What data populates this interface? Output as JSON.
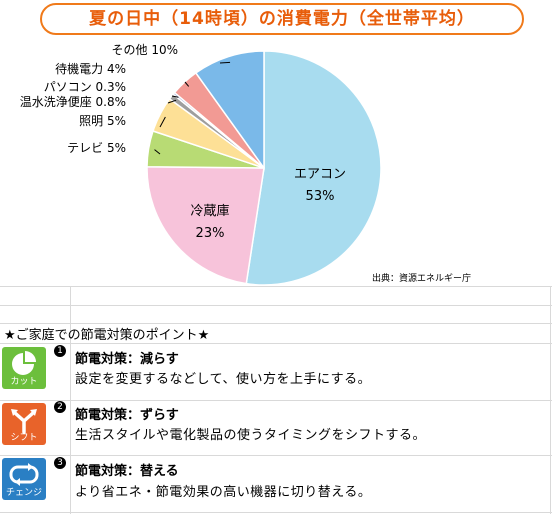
{
  "title": "夏の日中（14時頃）の消費電力（全世帯平均）",
  "source": "出典：資源エネルギー庁",
  "chart_data": {
    "type": "pie",
    "title": "夏の日中（14時頃）の消費電力（全世帯平均）",
    "slices": [
      {
        "label": "エアコン",
        "value": 53,
        "display": "53%",
        "color": "#a8dcef"
      },
      {
        "label": "冷蔵庫",
        "value": 23,
        "display": "23%",
        "color": "#f7c3da"
      },
      {
        "label": "テレビ",
        "value": 5,
        "display": "テレビ 5%",
        "color": "#b8db74"
      },
      {
        "label": "照明",
        "value": 5,
        "display": "照明 5%",
        "color": "#fde096"
      },
      {
        "label": "温水洗浄便座",
        "value": 0.8,
        "display": "温水洗浄便座 0.8%",
        "color": "#9e9e9e"
      },
      {
        "label": "パソコン",
        "value": 0.3,
        "display": "パソコン 0.3%",
        "color": "#9fa8d8"
      },
      {
        "label": "待機電力",
        "value": 4,
        "display": "待機電力 4%",
        "color": "#f29a94"
      },
      {
        "label": "その他",
        "value": 10,
        "display": "その他 10%",
        "color": "#7ab9e9"
      }
    ]
  },
  "tips": {
    "title": "★ご家庭での節電対策のポイント★",
    "items": [
      {
        "num": "1",
        "icon_label": "カット",
        "icon": "pie-cut-icon",
        "color": "#6cbf3c",
        "heading": "節電対策：減らす",
        "desc": "設定を変更するなどして、使い方を上手にする。"
      },
      {
        "num": "2",
        "icon_label": "シフト",
        "icon": "fork-arrow-icon",
        "color": "#e8632a",
        "heading": "節電対策：ずらす",
        "desc": "生活スタイルや電化製品の使うタイミングをシフトする。"
      },
      {
        "num": "3",
        "icon_label": "チェンジ",
        "icon": "cycle-arrows-icon",
        "color": "#2a7fc4",
        "heading": "節電対策：替える",
        "desc": "より省エネ・節電効果の高い機器に切り替える。"
      }
    ]
  }
}
